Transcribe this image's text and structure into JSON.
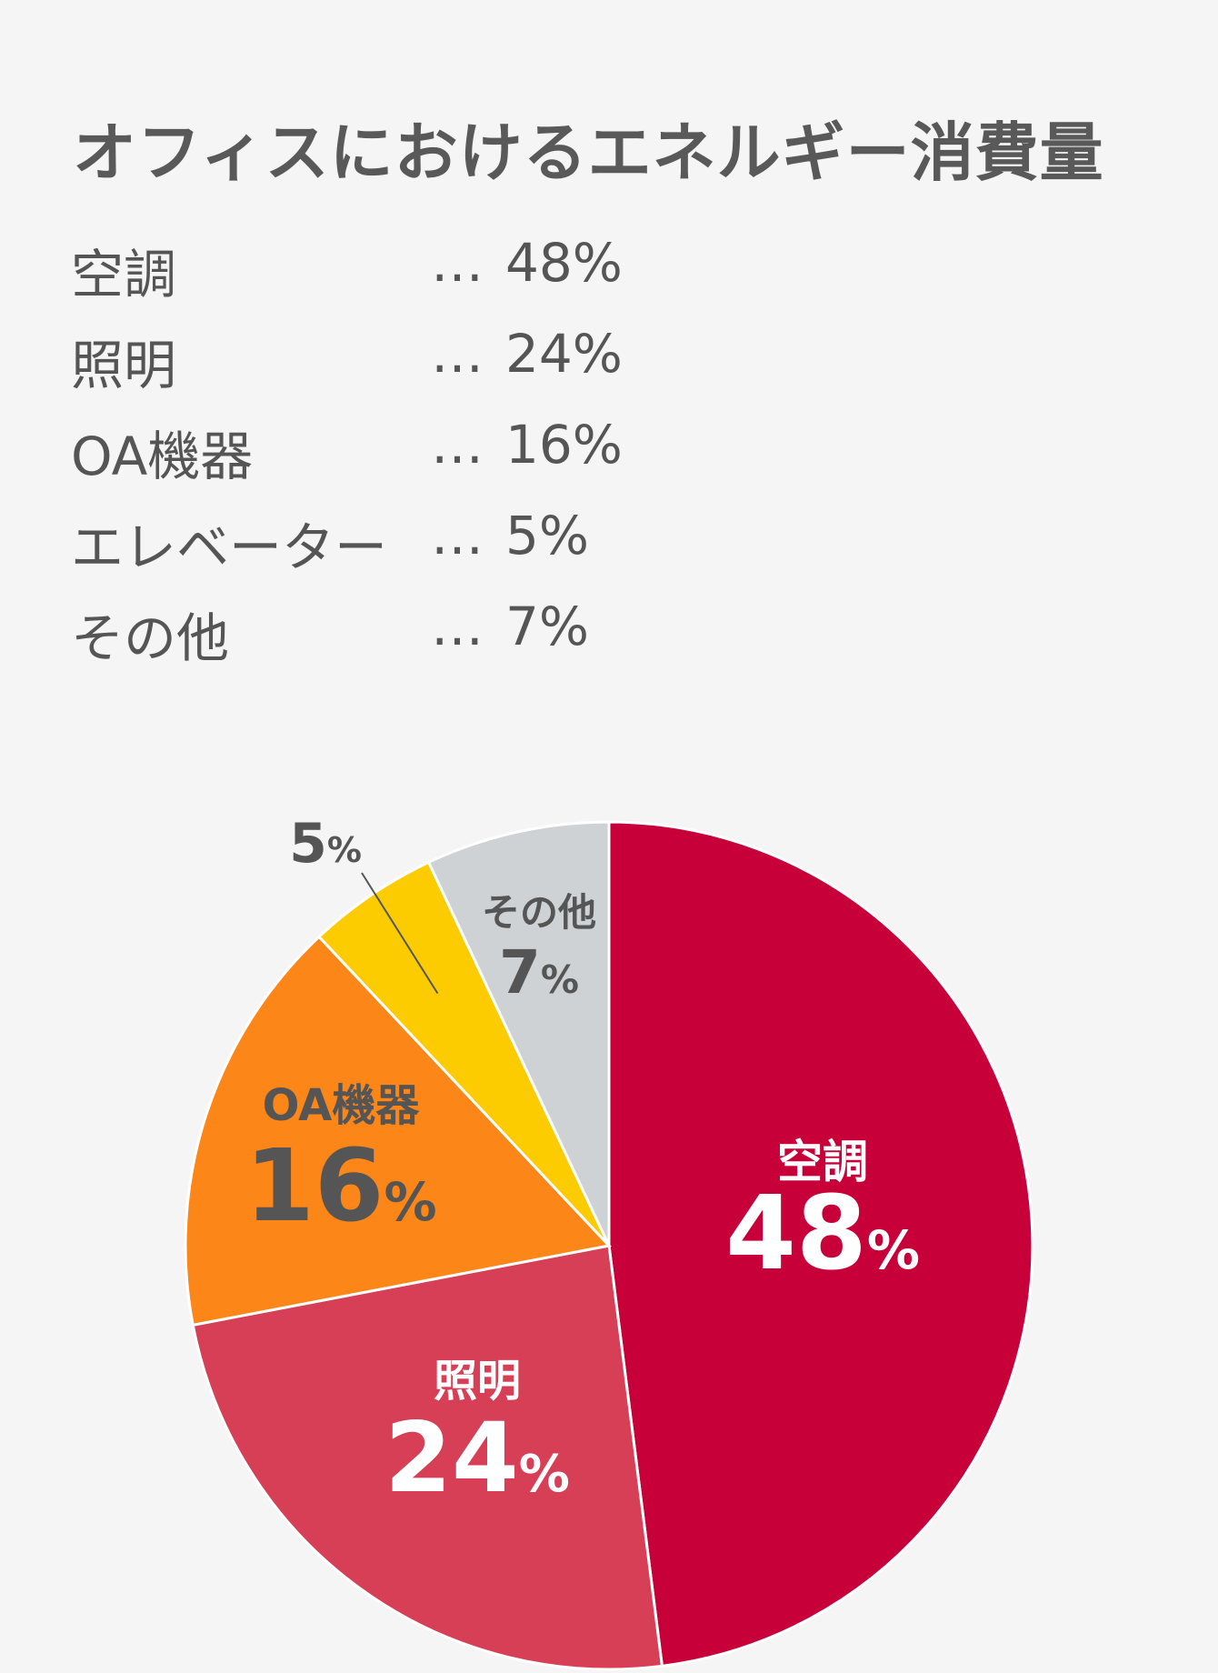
{
  "title": "オフィスにおけるエネルギー消費量",
  "legend_dots": "…",
  "chart_data": {
    "type": "pie",
    "title": "オフィスにおけるエネルギー消費量",
    "unit": "%",
    "slices": [
      {
        "label": "空調",
        "value": 48,
        "value_text": "48%",
        "color": "#c8003a"
      },
      {
        "label": "照明",
        "value": 24,
        "value_text": "24%",
        "color": "#d63f56"
      },
      {
        "label": "OA機器",
        "value": 16,
        "value_text": "16%",
        "color": "#fc8617"
      },
      {
        "label": "エレベーター",
        "value": 5,
        "value_text": "5%",
        "color": "#fccc00"
      },
      {
        "label": "その他",
        "value": 7,
        "value_text": "7%",
        "color": "#cfd2d4"
      }
    ]
  }
}
